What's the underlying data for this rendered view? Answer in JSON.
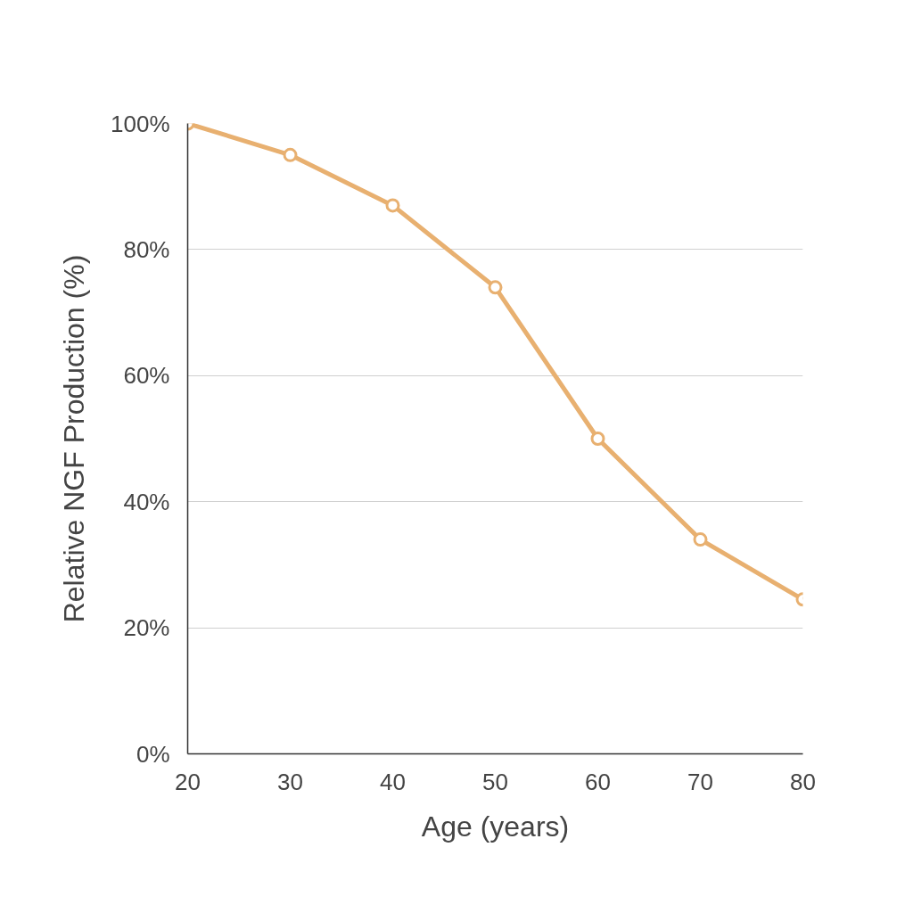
{
  "chart_data": {
    "type": "line",
    "xlabel": "Age (years)",
    "ylabel": "Relative NGF Production (%)",
    "x": [
      20,
      30,
      40,
      50,
      60,
      70,
      80
    ],
    "series": [
      {
        "color": "#e8b070",
        "values": [
          100,
          95,
          87,
          74,
          50,
          34,
          24.5
        ]
      }
    ],
    "xlim": [
      20,
      80
    ],
    "xticks": [
      20,
      30,
      40,
      50,
      60,
      70,
      80
    ],
    "ylim": [
      0,
      100
    ],
    "yticks": [
      {
        "value": 0,
        "label": "0%"
      },
      {
        "value": 20,
        "label": "20%"
      },
      {
        "value": 40,
        "label": "40%"
      },
      {
        "value": 60,
        "label": "60%"
      },
      {
        "value": 80,
        "label": "80%"
      },
      {
        "value": 100,
        "label": "100%"
      }
    ],
    "grid": "y",
    "marker": "circle",
    "line_style": "solid"
  }
}
